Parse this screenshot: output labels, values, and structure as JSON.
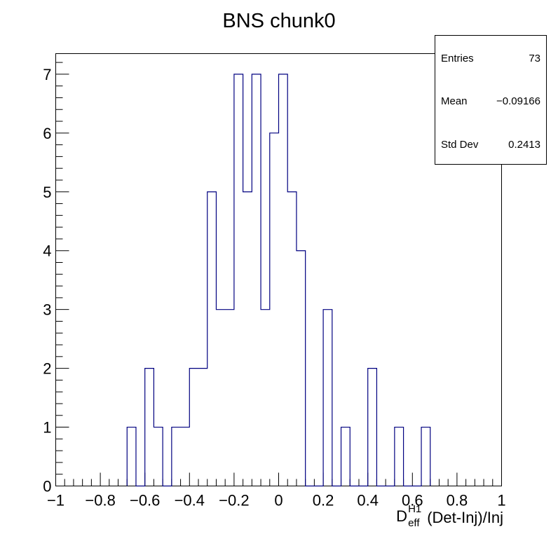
{
  "chart_data": {
    "type": "bar",
    "title": "BNS chunk0",
    "xlabel": {
      "base": "D",
      "sup": "H1",
      "sub": "eff",
      "rest": " (Det-Inj)/Inj"
    },
    "ylabel": "",
    "xlim": [
      -1,
      1
    ],
    "ylim": [
      0,
      7.35
    ],
    "bin_width": 0.04,
    "x_ticks": [
      -1,
      -0.8,
      -0.6,
      -0.4,
      -0.2,
      0,
      0.2,
      0.4,
      0.6,
      0.8,
      1
    ],
    "x_tick_labels": [
      "−1",
      "−0.8",
      "−0.6",
      "−0.4",
      "−0.2",
      "0",
      "0.2",
      "0.4",
      "0.6",
      "0.8",
      "1"
    ],
    "y_ticks": [
      0,
      1,
      2,
      3,
      4,
      5,
      6,
      7
    ],
    "y_tick_labels": [
      "0",
      "1",
      "2",
      "3",
      "4",
      "5",
      "6",
      "7"
    ],
    "bins": [
      {
        "x0": -0.68,
        "count": 1
      },
      {
        "x0": -0.64,
        "count": 0
      },
      {
        "x0": -0.6,
        "count": 2
      },
      {
        "x0": -0.56,
        "count": 1
      },
      {
        "x0": -0.52,
        "count": 0
      },
      {
        "x0": -0.48,
        "count": 1
      },
      {
        "x0": -0.44,
        "count": 1
      },
      {
        "x0": -0.4,
        "count": 2
      },
      {
        "x0": -0.36,
        "count": 2
      },
      {
        "x0": -0.32,
        "count": 5
      },
      {
        "x0": -0.28,
        "count": 3
      },
      {
        "x0": -0.24,
        "count": 3
      },
      {
        "x0": -0.2,
        "count": 7
      },
      {
        "x0": -0.16,
        "count": 5
      },
      {
        "x0": -0.12,
        "count": 7
      },
      {
        "x0": -0.08,
        "count": 3
      },
      {
        "x0": -0.04,
        "count": 6
      },
      {
        "x0": 0.0,
        "count": 7
      },
      {
        "x0": 0.04,
        "count": 5
      },
      {
        "x0": 0.08,
        "count": 4
      },
      {
        "x0": 0.12,
        "count": 0
      },
      {
        "x0": 0.16,
        "count": 0
      },
      {
        "x0": 0.2,
        "count": 3
      },
      {
        "x0": 0.24,
        "count": 0
      },
      {
        "x0": 0.28,
        "count": 1
      },
      {
        "x0": 0.32,
        "count": 0
      },
      {
        "x0": 0.36,
        "count": 0
      },
      {
        "x0": 0.4,
        "count": 2
      },
      {
        "x0": 0.44,
        "count": 0
      },
      {
        "x0": 0.48,
        "count": 0
      },
      {
        "x0": 0.52,
        "count": 1
      },
      {
        "x0": 0.56,
        "count": 0
      },
      {
        "x0": 0.6,
        "count": 0
      },
      {
        "x0": 0.64,
        "count": 1
      }
    ],
    "line_color": "#000080",
    "grid": false,
    "legend": "none"
  },
  "stats": {
    "entries_label": "Entries",
    "entries_value": "73",
    "mean_label": "Mean",
    "mean_value": "−0.09166",
    "stddev_label": "Std Dev",
    "stddev_value": "0.2413"
  }
}
